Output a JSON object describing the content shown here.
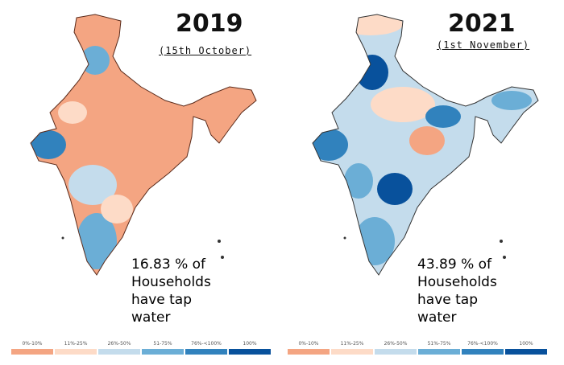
{
  "panels": [
    {
      "year": "2019",
      "date": "(15th October)",
      "stat_lines": [
        "16.83 % of",
        "Households",
        "have tap",
        "water"
      ],
      "dominant_category": "0%-10%"
    },
    {
      "year": "2021",
      "date": "(1st November)",
      "stat_lines": [
        "43.89 % of",
        "Households",
        "have tap",
        "water"
      ],
      "dominant_category": "26%-50%"
    }
  ],
  "legend": [
    {
      "label": "0%-10%",
      "color": "#f4a582"
    },
    {
      "label": "11%-25%",
      "color": "#fddbc7"
    },
    {
      "label": "26%-50%",
      "color": "#c4dcec"
    },
    {
      "label": "51-75%",
      "color": "#6baed6"
    },
    {
      "label": "76%-<100%",
      "color": "#3182bd"
    },
    {
      "label": "100%",
      "color": "#08519c"
    }
  ],
  "legend_right_labels": [
    "0%-10%",
    "11%-25%",
    "26%-50%",
    "51%-75%",
    "76%-<100%",
    "100%"
  ]
}
